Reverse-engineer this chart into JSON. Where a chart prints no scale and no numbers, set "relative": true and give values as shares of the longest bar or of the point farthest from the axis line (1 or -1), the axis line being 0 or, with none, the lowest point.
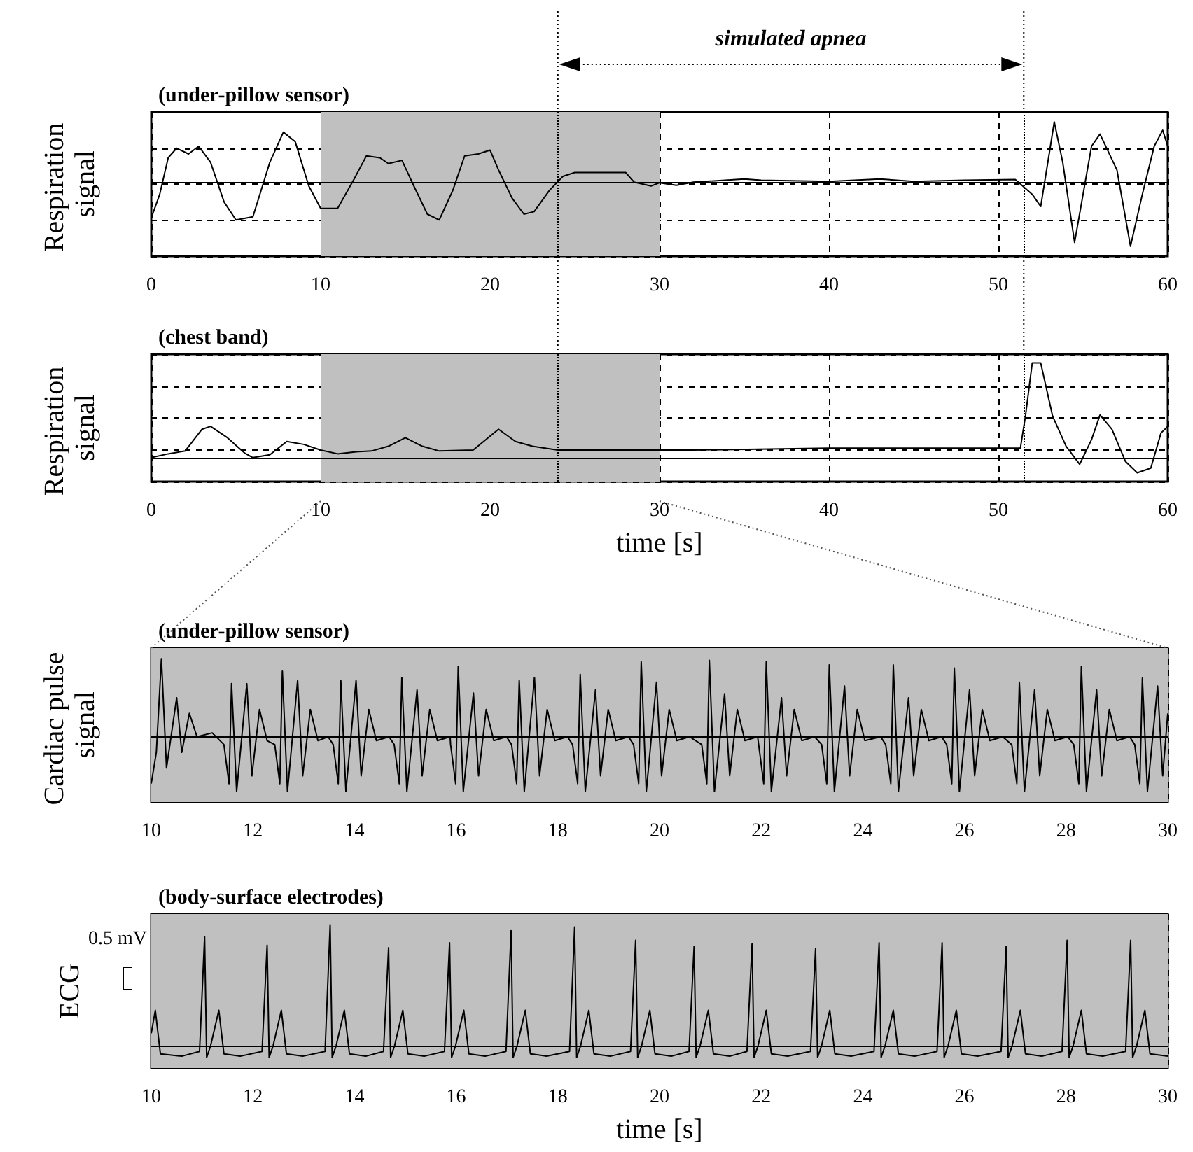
{
  "chart_data": [
    {
      "type": "line",
      "title": "(under-pillow sensor)",
      "ylabel": "Respiration signal",
      "relative": true,
      "color": "#000000",
      "x": [
        0,
        0.5,
        1,
        1.5,
        2.2,
        2.8,
        3.5,
        4.3,
        5,
        6,
        7,
        7.8,
        8.5,
        9.3,
        10,
        11,
        12,
        12.7,
        13.5,
        14,
        14.8,
        15.5,
        16.3,
        17,
        17.8,
        18.5,
        19.3,
        20,
        20.5,
        21.3,
        22,
        22.6,
        23.5,
        24.3,
        25,
        27,
        28,
        28.5,
        29.5,
        30,
        31,
        32,
        35,
        36,
        40,
        43,
        45,
        48,
        51,
        52,
        52.5,
        53,
        53.3,
        53.8,
        54.5,
        55.5,
        56,
        57,
        57.8,
        58.5,
        59.2,
        59.7,
        60
      ],
      "values": [
        -0.56,
        -0.19,
        0.38,
        0.53,
        0.44,
        0.56,
        0.31,
        -0.31,
        -0.59,
        -0.54,
        0.31,
        0.78,
        0.63,
        -0.06,
        -0.41,
        -0.41,
        0.06,
        0.41,
        0.38,
        0.29,
        0.34,
        -0.06,
        -0.5,
        -0.59,
        -0.13,
        0.41,
        0.44,
        0.5,
        0.19,
        -0.25,
        -0.5,
        -0.46,
        -0.13,
        0.09,
        0.15,
        0.15,
        0.15,
        0,
        -0.06,
        -0.01,
        -0.05,
        0,
        0.05,
        0.03,
        0.01,
        0.05,
        0.01,
        0.03,
        0.04,
        -0.19,
        -0.38,
        0.44,
        0.94,
        0.31,
        -0.94,
        0.56,
        0.75,
        0.19,
        -1,
        -0.19,
        0.56,
        0.81,
        0.56
      ],
      "xlim": [
        0,
        60
      ],
      "xticks": [
        0,
        10,
        20,
        30,
        40,
        50,
        60
      ],
      "grid": true,
      "bands": [
        {
          "axis": "x",
          "from": 10,
          "to": 30,
          "color": "#c0c0c0"
        }
      ],
      "ref_lines": [
        {
          "axis": "x",
          "value": 24,
          "line_style": "dotted"
        },
        {
          "axis": "x",
          "value": 51.5,
          "line_style": "dotted"
        }
      ],
      "annotations": [
        "simulated apnea"
      ]
    },
    {
      "type": "line",
      "title": "(chest band)",
      "ylabel": "Respiration signal",
      "xlabel": "time [s]",
      "relative": true,
      "color": "#000000",
      "x": [
        0,
        1,
        2,
        3,
        3.5,
        4.5,
        5.5,
        6,
        7,
        8,
        9,
        10,
        11,
        12,
        13,
        14,
        15,
        16,
        17,
        19,
        20.5,
        21.5,
        22.5,
        24,
        28,
        32,
        40,
        44,
        51.3,
        51.6,
        52,
        52.5,
        53.2,
        54,
        54.8,
        55.5,
        56,
        56.7,
        57.5,
        58.2,
        59,
        59.6,
        60
      ],
      "values": [
        0,
        0.04,
        0.07,
        0.3,
        0.33,
        0.21,
        0.05,
        0,
        0.03,
        0.17,
        0.14,
        0.08,
        0.04,
        0.06,
        0.07,
        0.12,
        0.21,
        0.12,
        0.07,
        0.08,
        0.3,
        0.17,
        0.12,
        0.08,
        0.08,
        0.08,
        0.1,
        0.1,
        0.1,
        0.44,
        1,
        1,
        0.44,
        0.12,
        -0.07,
        0.19,
        0.45,
        0.3,
        -0.04,
        -0.16,
        -0.11,
        0.26,
        0.33
      ],
      "xlim": [
        0,
        60
      ],
      "xticks": [
        0,
        10,
        20,
        30,
        40,
        50,
        60
      ],
      "grid": true,
      "bands": [
        {
          "axis": "x",
          "from": 10,
          "to": 30,
          "color": "#c0c0c0"
        }
      ],
      "ref_lines": [
        {
          "axis": "x",
          "value": 24,
          "line_style": "dotted"
        },
        {
          "axis": "x",
          "value": 51.5,
          "line_style": "dotted"
        }
      ]
    },
    {
      "type": "line",
      "title": "(under-pillow sensor)",
      "ylabel": "Cardiac pulse signal",
      "relative": true,
      "color": "#000000",
      "x": [
        10,
        10.1,
        10.2,
        10.3,
        10.5,
        10.6,
        10.75,
        10.9,
        11.2,
        11.43,
        11.53,
        11.58,
        11.68,
        11.88,
        11.98,
        12.13,
        12.28,
        12.43,
        12.53,
        12.58,
        12.68,
        12.88,
        12.98,
        13.13,
        13.28,
        13.48,
        13.58,
        13.68,
        13.73,
        13.83,
        14.03,
        14.13,
        14.28,
        14.43,
        14.68,
        14.78,
        14.88,
        14.93,
        15.03,
        15.23,
        15.33,
        15.48,
        15.63,
        15.88,
        15.89,
        15.99,
        16.04,
        16.14,
        16.34,
        16.44,
        16.59,
        16.74,
        16.99,
        17.09,
        17.19,
        17.24,
        17.34,
        17.54,
        17.64,
        17.79,
        17.94,
        18.19,
        18.29,
        18.39,
        18.44,
        18.54,
        18.74,
        18.84,
        18.99,
        19.14,
        19.39,
        19.49,
        19.59,
        19.64,
        19.74,
        19.94,
        20.04,
        20.19,
        20.34,
        20.59,
        20.83,
        20.93,
        20.98,
        21.08,
        21.28,
        21.38,
        21.53,
        21.68,
        21.93,
        21.95,
        22.05,
        22.1,
        22.2,
        22.4,
        22.5,
        22.65,
        22.8,
        23.05,
        23.19,
        23.29,
        23.34,
        23.44,
        23.64,
        23.74,
        23.89,
        24.04,
        24.35,
        24.45,
        24.55,
        24.6,
        24.7,
        24.9,
        25,
        25.15,
        25.3,
        25.55,
        25.65,
        25.75,
        25.8,
        25.9,
        26.1,
        26.2,
        26.35,
        26.5,
        26.75,
        26.93,
        27.03,
        27.08,
        27.18,
        27.38,
        27.48,
        27.63,
        27.78,
        28.03,
        28.15,
        28.25,
        28.3,
        28.4,
        28.6,
        28.7,
        28.85,
        29,
        29.25,
        29.35,
        29.45,
        29.5,
        29.6,
        29.8,
        29.9,
        30
      ],
      "values": [
        -0.6,
        -0.2,
        1,
        -0.4,
        0.5,
        -0.2,
        0.3,
        0,
        0.05,
        -0.1,
        -0.6,
        0.68,
        -0.7,
        0.68,
        -0.5,
        0.35,
        -0.05,
        -0.1,
        -0.6,
        0.84,
        -0.7,
        0.72,
        -0.5,
        0.35,
        -0.05,
        0,
        -0.1,
        -0.6,
        0.72,
        -0.7,
        0.72,
        -0.5,
        0.35,
        -0.05,
        0,
        -0.1,
        -0.6,
        0.76,
        -0.7,
        0.6,
        -0.5,
        0.35,
        -0.05,
        0,
        -0.1,
        -0.6,
        0.9,
        -0.7,
        0.56,
        -0.5,
        0.35,
        -0.05,
        0,
        -0.1,
        -0.6,
        0.72,
        -0.7,
        0.76,
        -0.5,
        0.35,
        -0.05,
        0,
        -0.1,
        -0.6,
        0.8,
        -0.7,
        0.6,
        -0.5,
        0.35,
        -0.05,
        0,
        -0.1,
        -0.6,
        0.96,
        -0.7,
        0.7,
        -0.5,
        0.35,
        -0.05,
        0,
        -0.1,
        -0.6,
        0.98,
        -0.7,
        0.55,
        -0.5,
        0.35,
        -0.05,
        0,
        -0.1,
        -0.6,
        0.96,
        -0.7,
        0.5,
        -0.5,
        0.35,
        -0.05,
        0,
        -0.1,
        -0.6,
        0.92,
        -0.7,
        0.65,
        -0.5,
        0.35,
        -0.05,
        0,
        -0.1,
        -0.6,
        0.92,
        -0.7,
        0.5,
        -0.5,
        0.35,
        -0.05,
        0,
        -0.1,
        -0.6,
        0.88,
        -0.7,
        0.6,
        -0.5,
        0.35,
        -0.05,
        0,
        -0.1,
        -0.6,
        0.7,
        -0.7,
        0.6,
        -0.5,
        0.35,
        -0.05,
        0,
        -0.1,
        -0.6,
        0.9,
        -0.7,
        0.6,
        -0.5,
        0.35,
        -0.05,
        0,
        -0.1,
        -0.6,
        0.75,
        -0.7,
        0.65,
        -0.5,
        0.3
      ],
      "xlim": [
        10,
        30
      ],
      "xticks": [
        10,
        12,
        14,
        16,
        18,
        20,
        22,
        24,
        26,
        28,
        30
      ],
      "grid": true,
      "bands": [
        {
          "axis": "x",
          "from": 10,
          "to": 30,
          "color": "#c0c0c0"
        }
      ]
    },
    {
      "type": "line",
      "title": "(body-surface electrodes)",
      "ylabel": "ECG",
      "xlabel": "time [s]",
      "relative": true,
      "color": "#000000",
      "x": [
        10,
        10.08,
        10.18,
        10.6,
        10.95,
        11.05,
        11.09,
        11.17,
        11.33,
        11.43,
        11.75,
        12.18,
        12.28,
        12.32,
        12.4,
        12.56,
        12.66,
        12.98,
        13.42,
        13.52,
        13.56,
        13.64,
        13.8,
        13.9,
        14.22,
        14.57,
        14.67,
        14.71,
        14.79,
        14.95,
        15.05,
        15.37,
        15.77,
        15.87,
        15.91,
        15.99,
        16.15,
        16.25,
        16.57,
        16.98,
        17.08,
        17.12,
        17.2,
        17.36,
        17.46,
        17.78,
        18.23,
        18.33,
        18.37,
        18.45,
        18.61,
        18.71,
        19.03,
        19.43,
        19.53,
        19.57,
        19.65,
        19.81,
        19.91,
        20.23,
        20.58,
        20.68,
        20.72,
        20.8,
        20.96,
        21.06,
        21.38,
        21.72,
        21.82,
        21.86,
        21.94,
        22.1,
        22.2,
        22.52,
        22.97,
        23.07,
        23.11,
        23.19,
        23.35,
        23.45,
        23.77,
        24.22,
        24.32,
        24.36,
        24.44,
        24.6,
        24.7,
        25.02,
        25.46,
        25.56,
        25.6,
        25.68,
        25.84,
        25.94,
        26.26,
        26.72,
        26.82,
        26.86,
        26.94,
        27.1,
        27.2,
        27.52,
        27.92,
        28.02,
        28.06,
        28.14,
        28.3,
        28.4,
        28.72,
        29.17,
        29.27,
        29.31,
        29.39,
        29.55,
        29.65,
        30
      ],
      "values": [
        0.1,
        0.29,
        -0.07,
        -0.09,
        -0.05,
        0.9,
        -0.1,
        0,
        0.29,
        -0.07,
        -0.09,
        -0.05,
        0.83,
        -0.1,
        0,
        0.29,
        -0.07,
        -0.09,
        -0.05,
        1,
        -0.1,
        0,
        0.29,
        -0.07,
        -0.09,
        -0.05,
        0.81,
        -0.1,
        0,
        0.29,
        -0.07,
        -0.09,
        -0.05,
        0.85,
        -0.1,
        0,
        0.29,
        -0.07,
        -0.09,
        -0.05,
        0.95,
        -0.1,
        0,
        0.29,
        -0.07,
        -0.09,
        -0.05,
        0.98,
        -0.1,
        0,
        0.29,
        -0.07,
        -0.09,
        -0.05,
        0.87,
        -0.1,
        0,
        0.29,
        -0.07,
        -0.09,
        -0.05,
        0.82,
        -0.1,
        0,
        0.29,
        -0.07,
        -0.09,
        -0.05,
        0.84,
        -0.1,
        0,
        0.29,
        -0.07,
        -0.09,
        -0.05,
        0.8,
        -0.1,
        0,
        0.29,
        -0.07,
        -0.09,
        -0.05,
        0.85,
        -0.1,
        0,
        0.29,
        -0.07,
        -0.09,
        -0.05,
        0.85,
        -0.1,
        0,
        0.29,
        -0.07,
        -0.09,
        -0.05,
        0.82,
        -0.1,
        0,
        0.29,
        -0.07,
        -0.09,
        -0.05,
        0.87,
        -0.1,
        0,
        0.29,
        -0.07,
        -0.09,
        -0.05,
        0.87,
        -0.1,
        0,
        0.29,
        -0.07,
        -0.09
      ],
      "xlim": [
        10,
        30
      ],
      "xticks": [
        10,
        12,
        14,
        16,
        18,
        20,
        22,
        24,
        26,
        28,
        30
      ],
      "grid": true,
      "bands": [
        {
          "axis": "x",
          "from": 10,
          "to": 30,
          "color": "#c0c0c0"
        }
      ],
      "annotations": [
        "0.5 mV"
      ]
    }
  ]
}
